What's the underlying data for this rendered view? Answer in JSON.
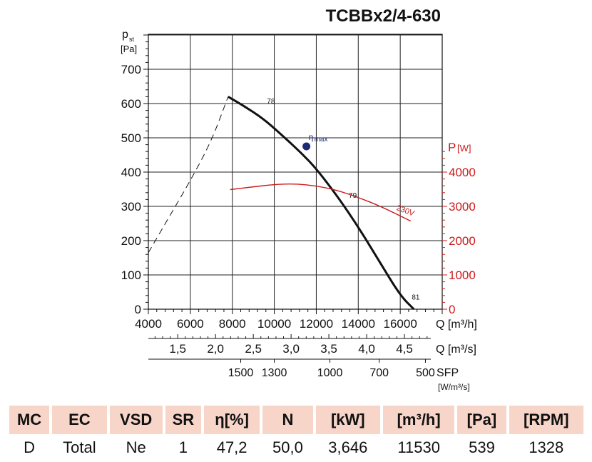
{
  "chart_data": {
    "type": "line",
    "title": "TCBBx2/4-630",
    "axes": {
      "y_left": {
        "label_main": "p",
        "label_sub": "st",
        "unit": "[Pa]",
        "range": [
          0,
          700
        ],
        "ticks": [
          "0",
          "100",
          "200",
          "300",
          "400",
          "500",
          "600",
          "700"
        ]
      },
      "y_right": {
        "label_main": "P",
        "unit": "[W]",
        "range": [
          0,
          4000
        ],
        "ticks": [
          "0",
          "1000",
          "2000",
          "3000",
          "4000"
        ],
        "color": "#cc1a1a"
      },
      "x_m3h": {
        "label": "Q [m³/h]",
        "range": [
          4000,
          18000
        ],
        "ticks": [
          "4000",
          "6000",
          "8000",
          "10000",
          "12000",
          "14000",
          "16000"
        ]
      },
      "x_m3s": {
        "label": "Q [m³/s]",
        "ticks": [
          {
            "v": 1.5,
            "t": "1,5"
          },
          {
            "v": 2.0,
            "t": "2,0"
          },
          {
            "v": 2.5,
            "t": "2,5"
          },
          {
            "v": 3.0,
            "t": "3,0"
          },
          {
            "v": 3.5,
            "t": "3,5"
          },
          {
            "v": 4.0,
            "t": "4,0"
          },
          {
            "v": 4.5,
            "t": "4,5"
          }
        ]
      },
      "x_sfp": {
        "label": "SFP",
        "unit": "[W/m³/s]",
        "ticks": [
          {
            "q": 8400,
            "t": "1500"
          },
          {
            "q": 10000,
            "t": "1300"
          },
          {
            "q": 12650,
            "t": "1000"
          },
          {
            "q": 15000,
            "t": "700"
          },
          {
            "q": 17200,
            "t": "500"
          }
        ]
      }
    },
    "series": [
      {
        "name": "",
        "kind": "pressure",
        "color": "#111111",
        "x": [
          7800,
          8500,
          9500,
          10500,
          11300,
          12000,
          13000,
          14000,
          15000,
          16000,
          16650
        ],
        "y": [
          620,
          595,
          555,
          500,
          455,
          410,
          330,
          240,
          140,
          40,
          0
        ]
      },
      {
        "name": "",
        "kind": "stall",
        "color": "#111111",
        "dashed": true,
        "x": [
          4000,
          5000,
          6000,
          7000,
          7800
        ],
        "y": [
          165,
          270,
          375,
          490,
          620
        ]
      },
      {
        "name": "230V",
        "kind": "power",
        "color": "#cc1a1a",
        "x": [
          7900,
          9000,
          10000,
          11000,
          12000,
          13000,
          14000,
          15000,
          16500
        ],
        "y": [
          3490,
          3570,
          3640,
          3660,
          3600,
          3470,
          3260,
          3020,
          2570
        ]
      }
    ],
    "markers": [
      {
        "x": 11530,
        "y": 475,
        "label_main": "η",
        "label_sub": "max",
        "color": "#1e2a78"
      }
    ],
    "annotations": [
      {
        "text": "78",
        "x": 9650,
        "y": 600
      },
      {
        "text": "79",
        "x": 13550,
        "y": 325
      },
      {
        "text": "81",
        "x": 16550,
        "y": 28
      },
      {
        "text": "230V",
        "x": 15800,
        "y": 290,
        "rotate": 20,
        "color": "#cc1a1a"
      }
    ],
    "grid": true
  },
  "table": {
    "headers": [
      "MC",
      "EC",
      "VSD",
      "SR",
      "η[%]",
      "N",
      "[kW]",
      "[m³/h]",
      "[Pa]",
      "[RPM]"
    ],
    "row": [
      "D",
      "Total",
      "Ne",
      "1",
      "47,2",
      "50,0",
      "3,646",
      "11530",
      "539",
      "1328"
    ]
  }
}
